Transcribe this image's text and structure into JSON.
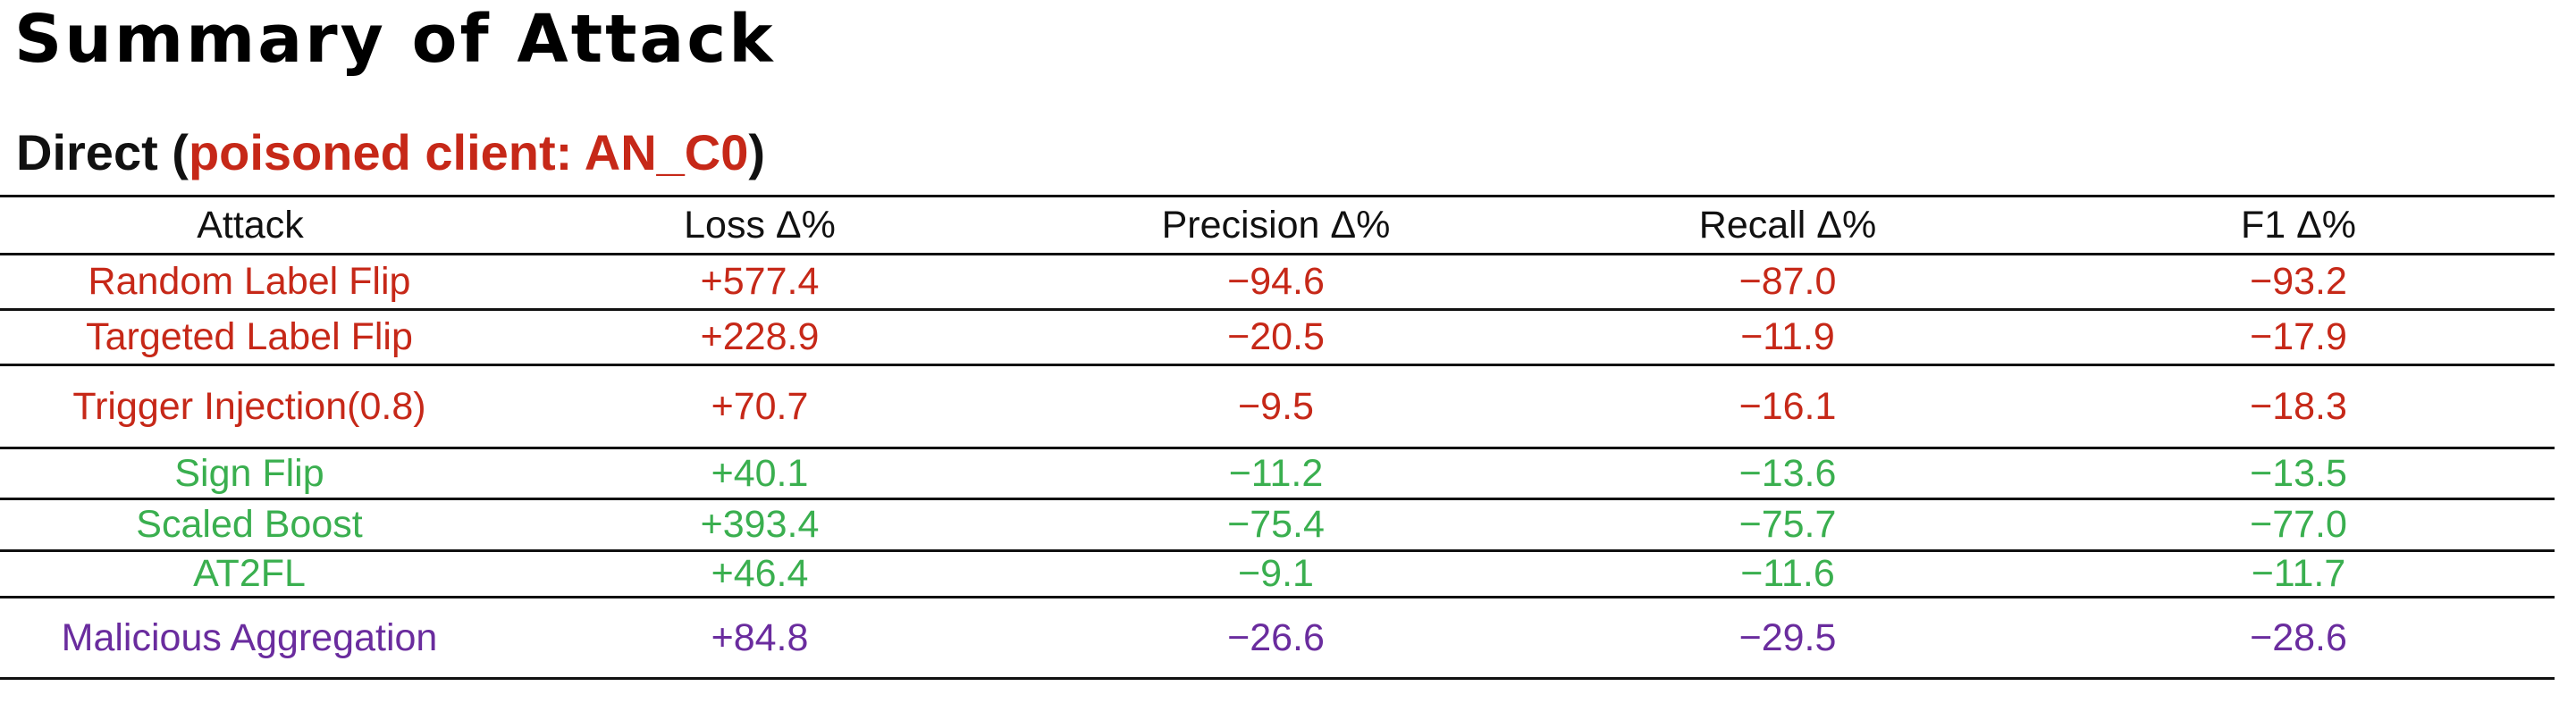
{
  "title": "Summary of Attack",
  "section": {
    "prefix": "Direct (",
    "client_label": "poisoned client: AN_C0",
    "suffix": ")"
  },
  "colors": {
    "red": "#c62818",
    "green": "#3aaf4f",
    "purple": "#6a2c9e",
    "heading_accent": "#c62818"
  },
  "table": {
    "headers": [
      "Attack",
      "Loss Δ%",
      "Precision Δ%",
      "Recall Δ%",
      "F1 Δ%"
    ],
    "rows": [
      {
        "attack": "Random Label Flip",
        "loss": "+577.4",
        "precision": "−94.6",
        "recall": "−87.0",
        "f1": "−93.2",
        "color": "#c62818"
      },
      {
        "attack": "Targeted Label Flip",
        "loss": "+228.9",
        "precision": "−20.5",
        "recall": "−11.9",
        "f1": "−17.9",
        "color": "#c62818"
      },
      {
        "attack": "Trigger Injection(0.8)",
        "loss": "+70.7",
        "precision": "−9.5",
        "recall": "−16.1",
        "f1": "−18.3",
        "color": "#c62818"
      },
      {
        "attack": "Sign Flip",
        "loss": "+40.1",
        "precision": "−11.2",
        "recall": "−13.6",
        "f1": "−13.5",
        "color": "#3aaf4f"
      },
      {
        "attack": "Scaled Boost",
        "loss": "+393.4",
        "precision": "−75.4",
        "recall": "−75.7",
        "f1": "−77.0",
        "color": "#3aaf4f"
      },
      {
        "attack": "AT2FL",
        "loss": "+46.4",
        "precision": "−9.1",
        "recall": "−11.6",
        "f1": "−11.7",
        "color": "#3aaf4f"
      },
      {
        "attack": "Malicious Aggregation",
        "loss": "+84.8",
        "precision": "−26.6",
        "recall": "−29.5",
        "f1": "−28.6",
        "color": "#6a2c9e"
      }
    ]
  }
}
